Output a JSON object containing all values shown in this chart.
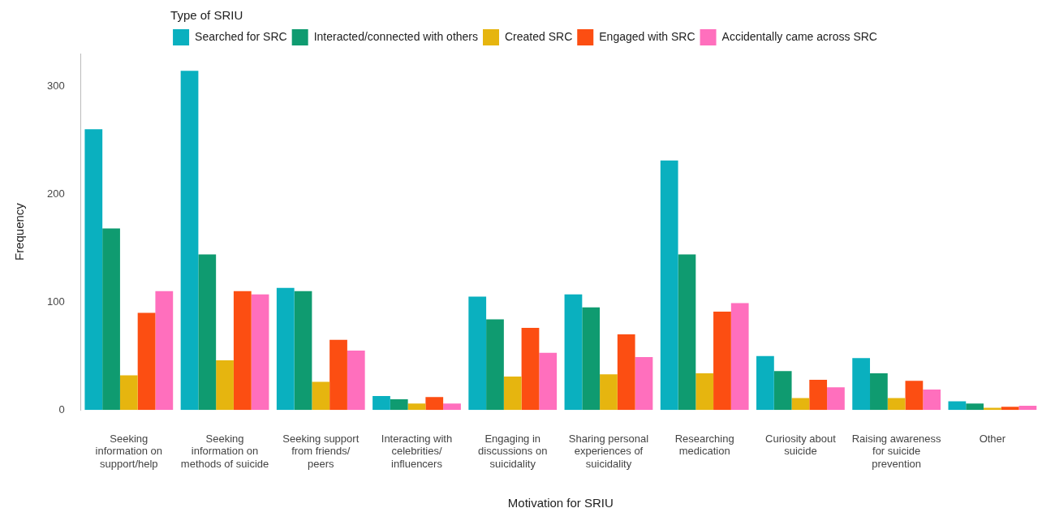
{
  "chart_data": {
    "type": "bar",
    "xlabel": "Motivation for SRIU",
    "ylabel": "Frequency",
    "legend_title": "Type of SRIU",
    "legend": "top",
    "grid": false,
    "categories": [
      "Seeking information on support/help",
      "Seeking information on methods of suicide",
      "Seeking support from friends/ peers",
      "Interacting with celebrities/ influencers",
      "Engaging in discussions on suicidality",
      "Sharing personal experiences of suicidality",
      "Researching medication",
      "Curiosity about suicide",
      "Raising awareness for suicide prevention",
      "Other"
    ],
    "ylim": [
      0,
      330
    ],
    "yticks": [
      0,
      100,
      200,
      300
    ],
    "series": [
      {
        "name": "Searched for SRC",
        "color": "#0ab0bf",
        "values": [
          260,
          314,
          113,
          13,
          105,
          107,
          231,
          50,
          48,
          8
        ]
      },
      {
        "name": "Interacted/connected with others",
        "color": "#0f9b70",
        "values": [
          168,
          144,
          110,
          10,
          84,
          95,
          144,
          36,
          34,
          6
        ]
      },
      {
        "name": "Created SRC",
        "color": "#e6b50f",
        "values": [
          32,
          46,
          26,
          6,
          31,
          33,
          34,
          11,
          11,
          2
        ]
      },
      {
        "name": "Engaged with SRC",
        "color": "#fc4e12",
        "values": [
          90,
          110,
          65,
          12,
          76,
          70,
          91,
          28,
          27,
          3
        ]
      },
      {
        "name": "Accidentally came across SRC",
        "color": "#ff6fbd",
        "values": [
          110,
          107,
          55,
          6,
          53,
          49,
          99,
          21,
          19,
          4
        ]
      }
    ]
  }
}
